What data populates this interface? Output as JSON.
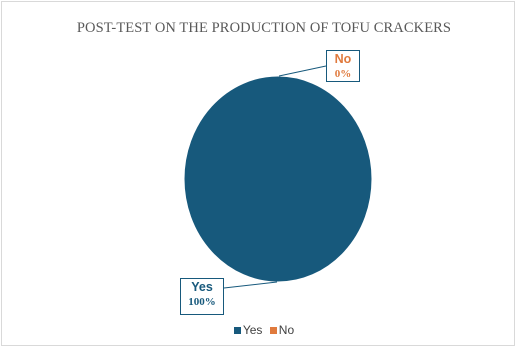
{
  "chart_data": {
    "type": "pie",
    "title": "POST-TEST ON THE PRODUCTION OF TOFU CRACKERS",
    "categories": [
      "Yes",
      "No"
    ],
    "values": [
      100,
      0
    ],
    "labels": [
      "100%",
      "0%"
    ],
    "colors": [
      "#17597c",
      "#e07a3d"
    ],
    "legend": "bottom"
  },
  "legend": [
    {
      "label": "Yes",
      "color": "#17597c"
    },
    {
      "label": "No",
      "color": "#e07a3d"
    }
  ]
}
